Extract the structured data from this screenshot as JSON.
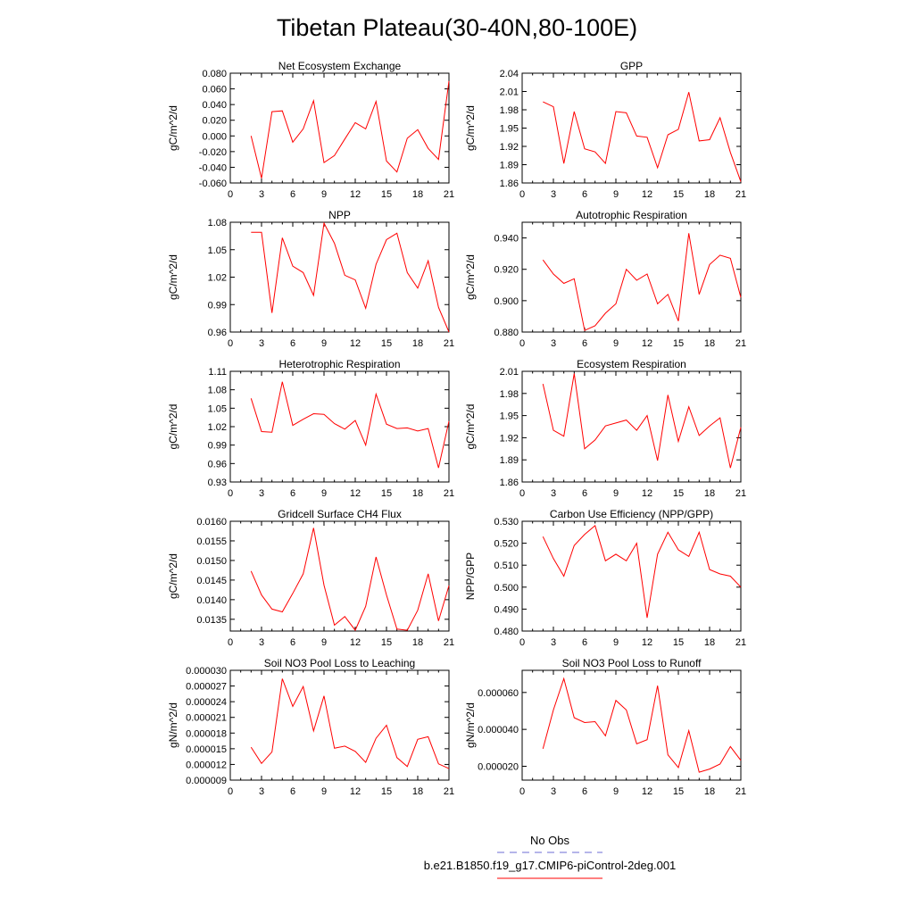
{
  "figure": {
    "title": "Tibetan Plateau(30-40N,80-100E)",
    "legend": [
      {
        "label": "No Obs",
        "color": "#6b6bd6",
        "style": "dashed"
      },
      {
        "label": "b.e21.B1850.f19_g17.CMIP6-piControl-2deg.001",
        "color": "#ff0000",
        "style": "solid"
      }
    ]
  },
  "chart_data": [
    {
      "type": "line",
      "title": "Net Ecosystem Exchange",
      "ylabel": "gC/m^2/d",
      "xlim": [
        0,
        21
      ],
      "xticks": [
        0,
        3,
        6,
        9,
        12,
        15,
        18,
        21
      ],
      "ylim": [
        -0.06,
        0.08
      ],
      "yticks": [
        -0.06,
        -0.04,
        -0.02,
        0.0,
        0.02,
        0.04,
        0.06,
        0.08
      ],
      "ytick_labels": [
        "-0.060",
        "-0.040",
        "-0.020",
        "0.000",
        "0.020",
        "0.040",
        "0.060",
        "0.080"
      ],
      "x": [
        2,
        3,
        4,
        5,
        6,
        7,
        8,
        9,
        10,
        11,
        12,
        13,
        14,
        15,
        16,
        17,
        18,
        19,
        20,
        21
      ],
      "series": [
        {
          "color": "#ff0000",
          "values": [
            0.0,
            -0.054,
            0.031,
            0.032,
            -0.008,
            0.009,
            0.045,
            -0.034,
            -0.025,
            -0.004,
            0.017,
            0.009,
            0.044,
            -0.032,
            -0.046,
            -0.003,
            0.008,
            -0.016,
            -0.03,
            0.07
          ]
        }
      ]
    },
    {
      "type": "line",
      "title": "GPP",
      "ylabel": "gC/m^2/d",
      "xlim": [
        0,
        21
      ],
      "xticks": [
        0,
        3,
        6,
        9,
        12,
        15,
        18,
        21
      ],
      "ylim": [
        1.86,
        2.04
      ],
      "yticks": [
        1.86,
        1.89,
        1.92,
        1.95,
        1.98,
        2.01,
        2.04
      ],
      "ytick_labels": [
        "1.86",
        "1.89",
        "1.92",
        "1.95",
        "1.98",
        "2.01",
        "2.04"
      ],
      "x": [
        2,
        3,
        4,
        5,
        6,
        7,
        8,
        9,
        10,
        11,
        12,
        13,
        14,
        15,
        16,
        17,
        18,
        19,
        20,
        21
      ],
      "series": [
        {
          "color": "#ff0000",
          "values": [
            1.993,
            1.985,
            1.892,
            1.977,
            1.916,
            1.911,
            1.892,
            1.977,
            1.975,
            1.937,
            1.935,
            1.885,
            1.939,
            1.948,
            2.009,
            1.929,
            1.931,
            1.967,
            1.91,
            1.862
          ]
        }
      ]
    },
    {
      "type": "line",
      "title": "NPP",
      "ylabel": "gC/m^2/d",
      "xlim": [
        0,
        21
      ],
      "xticks": [
        0,
        3,
        6,
        9,
        12,
        15,
        18,
        21
      ],
      "ylim": [
        0.96,
        1.08
      ],
      "yticks": [
        0.96,
        0.99,
        1.02,
        1.05,
        1.08
      ],
      "ytick_labels": [
        "0.96",
        "0.99",
        "1.02",
        "1.05",
        "1.08"
      ],
      "x": [
        2,
        3,
        4,
        5,
        6,
        7,
        8,
        9,
        10,
        11,
        12,
        13,
        14,
        15,
        16,
        17,
        18,
        19,
        20,
        21
      ],
      "series": [
        {
          "color": "#ff0000",
          "values": [
            1.069,
            1.069,
            0.981,
            1.063,
            1.032,
            1.025,
            1.0,
            1.079,
            1.057,
            1.022,
            1.017,
            0.986,
            1.034,
            1.061,
            1.068,
            1.025,
            1.008,
            1.038,
            0.987,
            0.96
          ]
        }
      ]
    },
    {
      "type": "line",
      "title": "Autotrophic Respiration",
      "ylabel": "gC/m^2/d",
      "xlim": [
        0,
        21
      ],
      "xticks": [
        0,
        3,
        6,
        9,
        12,
        15,
        18,
        21
      ],
      "ylim": [
        0.88,
        0.95
      ],
      "yticks": [
        0.88,
        0.9,
        0.92,
        0.94
      ],
      "ytick_labels": [
        "0.880",
        "0.900",
        "0.920",
        "0.940"
      ],
      "x": [
        2,
        3,
        4,
        5,
        6,
        7,
        8,
        9,
        10,
        11,
        12,
        13,
        14,
        15,
        16,
        17,
        18,
        19,
        20,
        21
      ],
      "series": [
        {
          "color": "#ff0000",
          "values": [
            0.926,
            0.917,
            0.911,
            0.914,
            0.881,
            0.884,
            0.892,
            0.898,
            0.92,
            0.913,
            0.917,
            0.898,
            0.904,
            0.887,
            0.943,
            0.904,
            0.923,
            0.929,
            0.927,
            0.902
          ]
        }
      ]
    },
    {
      "type": "line",
      "title": "Heterotrophic Respiration",
      "ylabel": "gC/m^2/d",
      "xlim": [
        0,
        21
      ],
      "xticks": [
        0,
        3,
        6,
        9,
        12,
        15,
        18,
        21
      ],
      "ylim": [
        0.93,
        1.11
      ],
      "yticks": [
        0.93,
        0.96,
        0.99,
        1.02,
        1.05,
        1.08,
        1.11
      ],
      "ytick_labels": [
        "0.93",
        "0.96",
        "0.99",
        "1.02",
        "1.05",
        "1.08",
        "1.11"
      ],
      "x": [
        2,
        3,
        4,
        5,
        6,
        7,
        8,
        9,
        10,
        11,
        12,
        13,
        14,
        15,
        16,
        17,
        18,
        19,
        20,
        21
      ],
      "series": [
        {
          "color": "#ff0000",
          "values": [
            1.066,
            1.012,
            1.011,
            1.093,
            1.022,
            1.032,
            1.041,
            1.04,
            1.025,
            1.016,
            1.03,
            0.99,
            1.073,
            1.024,
            1.017,
            1.018,
            1.013,
            1.017,
            0.953,
            1.029
          ]
        }
      ]
    },
    {
      "type": "line",
      "title": "Ecosystem Respiration",
      "ylabel": "gC/m^2/d",
      "xlim": [
        0,
        21
      ],
      "xticks": [
        0,
        3,
        6,
        9,
        12,
        15,
        18,
        21
      ],
      "ylim": [
        1.86,
        2.01
      ],
      "yticks": [
        1.86,
        1.89,
        1.92,
        1.95,
        1.98,
        2.01
      ],
      "ytick_labels": [
        "1.86",
        "1.89",
        "1.92",
        "1.95",
        "1.98",
        "2.01"
      ],
      "x": [
        2,
        3,
        4,
        5,
        6,
        7,
        8,
        9,
        10,
        11,
        12,
        13,
        14,
        15,
        16,
        17,
        18,
        19,
        20,
        21
      ],
      "series": [
        {
          "color": "#ff0000",
          "values": [
            1.993,
            1.93,
            1.922,
            2.007,
            1.905,
            1.917,
            1.936,
            1.94,
            1.944,
            1.93,
            1.95,
            1.889,
            1.978,
            1.915,
            1.962,
            1.923,
            1.936,
            1.947,
            1.879,
            1.934
          ]
        }
      ]
    },
    {
      "type": "line",
      "title": "Gridcell Surface CH4 Flux",
      "ylabel": "gC/m^2/d",
      "xlim": [
        0,
        21
      ],
      "xticks": [
        0,
        3,
        6,
        9,
        12,
        15,
        18,
        21
      ],
      "ylim": [
        0.0132,
        0.016
      ],
      "yticks": [
        0.0135,
        0.014,
        0.0145,
        0.015,
        0.0155,
        0.016
      ],
      "ytick_labels": [
        "0.0135",
        "0.0140",
        "0.0145",
        "0.0150",
        "0.0155",
        "0.0160"
      ],
      "x": [
        2,
        3,
        4,
        5,
        6,
        7,
        8,
        9,
        10,
        11,
        12,
        13,
        14,
        15,
        16,
        17,
        18,
        19,
        20,
        21
      ],
      "series": [
        {
          "color": "#ff0000",
          "values": [
            0.01473,
            0.01412,
            0.01376,
            0.01369,
            0.01416,
            0.01466,
            0.01583,
            0.01437,
            0.01335,
            0.01357,
            0.01322,
            0.01383,
            0.01509,
            0.01412,
            0.01325,
            0.01322,
            0.01373,
            0.01466,
            0.01346,
            0.01436
          ]
        }
      ]
    },
    {
      "type": "line",
      "title": "Carbon Use Efficiency (NPP/GPP)",
      "ylabel": "NPP/GPP",
      "xlim": [
        0,
        21
      ],
      "xticks": [
        0,
        3,
        6,
        9,
        12,
        15,
        18,
        21
      ],
      "ylim": [
        0.48,
        0.53
      ],
      "yticks": [
        0.48,
        0.49,
        0.5,
        0.51,
        0.52,
        0.53
      ],
      "ytick_labels": [
        "0.480",
        "0.490",
        "0.500",
        "0.510",
        "0.520",
        "0.530"
      ],
      "x": [
        2,
        3,
        4,
        5,
        6,
        7,
        8,
        9,
        10,
        11,
        12,
        13,
        14,
        15,
        16,
        17,
        18,
        19,
        20,
        21
      ],
      "series": [
        {
          "color": "#ff0000",
          "values": [
            0.523,
            0.513,
            0.505,
            0.519,
            0.524,
            0.528,
            0.512,
            0.515,
            0.512,
            0.52,
            0.486,
            0.515,
            0.525,
            0.517,
            0.514,
            0.525,
            0.508,
            0.506,
            0.505,
            0.5
          ]
        }
      ]
    },
    {
      "type": "line",
      "title": "Soil NO3 Pool Loss to Leaching",
      "ylabel": "gN/m^2/d",
      "xlim": [
        0,
        21
      ],
      "xticks": [
        0,
        3,
        6,
        9,
        12,
        15,
        18,
        21
      ],
      "ylim": [
        9e-06,
        3e-05
      ],
      "yticks": [
        9e-06,
        1.2e-05,
        1.5e-05,
        1.8e-05,
        2.1e-05,
        2.4e-05,
        2.7e-05,
        3e-05
      ],
      "ytick_labels": [
        "0.000009",
        "0.000012",
        "0.000015",
        "0.000018",
        "0.000021",
        "0.000024",
        "0.000027",
        "0.000030"
      ],
      "x": [
        2,
        3,
        4,
        5,
        6,
        7,
        8,
        9,
        10,
        11,
        12,
        13,
        14,
        15,
        16,
        17,
        18,
        19,
        20,
        21
      ],
      "series": [
        {
          "color": "#ff0000",
          "values": [
            1.53e-05,
            1.22e-05,
            1.44e-05,
            2.84e-05,
            2.31e-05,
            2.69e-05,
            1.84e-05,
            2.51e-05,
            1.51e-05,
            1.55e-05,
            1.45e-05,
            1.24e-05,
            1.7e-05,
            1.95e-05,
            1.33e-05,
            1.16e-05,
            1.68e-05,
            1.73e-05,
            1.21e-05,
            1.12e-05
          ]
        }
      ]
    },
    {
      "type": "line",
      "title": "Soil NO3 Pool Loss to Runoff",
      "ylabel": "gN/m^2/d",
      "xlim": [
        0,
        21
      ],
      "xticks": [
        0,
        3,
        6,
        9,
        12,
        15,
        18,
        21
      ],
      "ylim": [
        1.25e-05,
        7.2e-05
      ],
      "yticks": [
        2e-05,
        4e-05,
        6e-05
      ],
      "ytick_labels": [
        "0.000020",
        "0.000040",
        "0.000060"
      ],
      "x": [
        2,
        3,
        4,
        5,
        6,
        7,
        8,
        9,
        10,
        11,
        12,
        13,
        14,
        15,
        16,
        17,
        18,
        19,
        20,
        21
      ],
      "series": [
        {
          "color": "#ff0000",
          "values": [
            2.95e-05,
            5.05e-05,
            6.75e-05,
            4.63e-05,
            4.37e-05,
            4.42e-05,
            3.65e-05,
            5.57e-05,
            5.05e-05,
            3.22e-05,
            3.44e-05,
            6.37e-05,
            2.62e-05,
            1.93e-05,
            3.93e-05,
            1.68e-05,
            1.85e-05,
            2.12e-05,
            3.07e-05,
            2.32e-05
          ]
        }
      ]
    }
  ]
}
